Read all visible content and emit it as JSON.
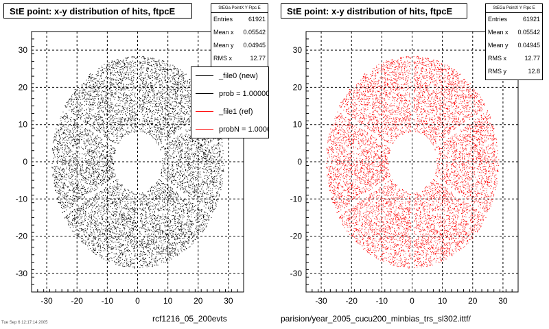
{
  "left_panel": {
    "title": "StE point: x-y distribution of hits, ftpcE",
    "stats": {
      "header": "StEGa PointX Y Ftpc E",
      "rows": [
        {
          "label": "Entries",
          "value": "61921"
        },
        {
          "label": "Mean x",
          "value": "0.05542"
        },
        {
          "label": "Mean y",
          "value": "0.04945"
        },
        {
          "label": "RMS x",
          "value": "12.77"
        }
      ]
    },
    "legend": [
      {
        "label": "_file0 (new)",
        "color": "#000000"
      },
      {
        "label": "prob = 1.000000",
        "color": "#000000"
      },
      {
        "label": "_file1 (ref)",
        "color": "#ff0000"
      },
      {
        "label": "probN = 1.000000",
        "color": "#ff0000"
      }
    ],
    "footer": "rcf1216_05_200evts",
    "tiny_footer": "Tue Sep 6 12:17:14 2005"
  },
  "right_panel": {
    "title": "StE point: x-y distribution of hits, ftpcE",
    "stats": {
      "header": "StEGa PointX Y Ftpc E",
      "rows": [
        {
          "label": "Entries",
          "value": "61921"
        },
        {
          "label": "Mean x",
          "value": "0.05542"
        },
        {
          "label": "Mean y",
          "value": "0.04945"
        },
        {
          "label": "RMS x",
          "value": "12.77"
        },
        {
          "label": "RMS y",
          "value": "12.8"
        }
      ]
    },
    "footer": "parision/year_2005_cucu200_minbias_trs_sl302.ittf/"
  },
  "chart_data": [
    {
      "type": "scatter",
      "title": "StE point: x-y distribution of hits, ftpcE",
      "series": [
        {
          "name": "_file0 (new)",
          "color": "#000000",
          "entries": 61921,
          "inner_radius": 8,
          "outer_radius": 28.5,
          "sectors": 6
        }
      ],
      "xlim": [
        -35,
        35
      ],
      "ylim": [
        -35,
        35
      ],
      "x_ticks": [
        -30,
        -20,
        -10,
        0,
        10,
        20,
        30
      ],
      "y_ticks": [
        -30,
        -20,
        -10,
        0,
        10,
        20,
        30
      ],
      "grid": true
    },
    {
      "type": "scatter",
      "title": "StE point: x-y distribution of hits, ftpcE",
      "series": [
        {
          "name": "_file1 (ref)",
          "color": "#ff0000",
          "entries": 61921,
          "inner_radius": 8,
          "outer_radius": 28.5,
          "sectors": 6
        }
      ],
      "xlim": [
        -35,
        35
      ],
      "ylim": [
        -35,
        35
      ],
      "x_ticks": [
        -30,
        -20,
        -10,
        0,
        10,
        20,
        30
      ],
      "y_ticks": [
        -30,
        -20,
        -10,
        0,
        10,
        20,
        30
      ],
      "grid": true
    }
  ]
}
